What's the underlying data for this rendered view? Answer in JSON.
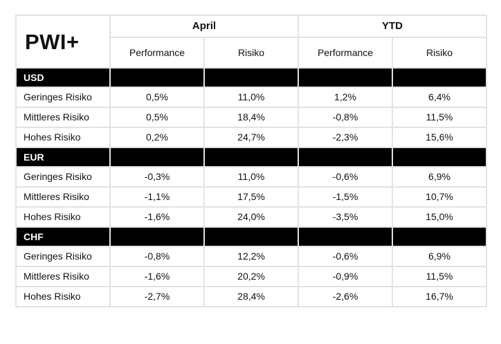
{
  "brand": "PWI+",
  "groups": {
    "april": "April",
    "ytd": "YTD"
  },
  "subheaders": {
    "april_performance": "Performance",
    "april_risk": "Risiko",
    "ytd_performance": "Performance",
    "ytd_risk": "Risiko"
  },
  "sections": [
    {
      "name": "USD",
      "rows": [
        {
          "label": "Geringes Risiko",
          "april_performance": "0,5%",
          "april_risk": "11,0%",
          "ytd_performance": "1,2%",
          "ytd_risk": "6,4%"
        },
        {
          "label": "Mittleres Risiko",
          "april_performance": "0,5%",
          "april_risk": "18,4%",
          "ytd_performance": "-0,8%",
          "ytd_risk": "11,5%"
        },
        {
          "label": "Hohes Risiko",
          "april_performance": "0,2%",
          "april_risk": "24,7%",
          "ytd_performance": "-2,3%",
          "ytd_risk": "15,6%"
        }
      ]
    },
    {
      "name": "EUR",
      "rows": [
        {
          "label": "Geringes Risiko",
          "april_performance": "-0,3%",
          "april_risk": "11,0%",
          "ytd_performance": "-0,6%",
          "ytd_risk": "6,9%"
        },
        {
          "label": "Mittleres Risiko",
          "april_performance": "-1,1%",
          "april_risk": "17,5%",
          "ytd_performance": "-1,5%",
          "ytd_risk": "10,7%"
        },
        {
          "label": "Hohes Risiko",
          "april_performance": "-1,6%",
          "april_risk": "24,0%",
          "ytd_performance": "-3,5%",
          "ytd_risk": "15,0%"
        }
      ]
    },
    {
      "name": "CHF",
      "rows": [
        {
          "label": "Geringes Risiko",
          "april_performance": "-0,8%",
          "april_risk": "12,2%",
          "ytd_performance": "-0,6%",
          "ytd_risk": "6,9%"
        },
        {
          "label": "Mittleres Risiko",
          "april_performance": "-1,6%",
          "april_risk": "20,2%",
          "ytd_performance": "-0,9%",
          "ytd_risk": "11,5%"
        },
        {
          "label": "Hohes Risiko",
          "april_performance": "-2,7%",
          "april_risk": "28,4%",
          "ytd_performance": "-2,6%",
          "ytd_risk": "16,7%"
        }
      ]
    }
  ],
  "colors": {
    "section_bg": "#000000",
    "section_text": "#ffffff",
    "grid_line": "#e2e2e2",
    "text": "#111111"
  }
}
